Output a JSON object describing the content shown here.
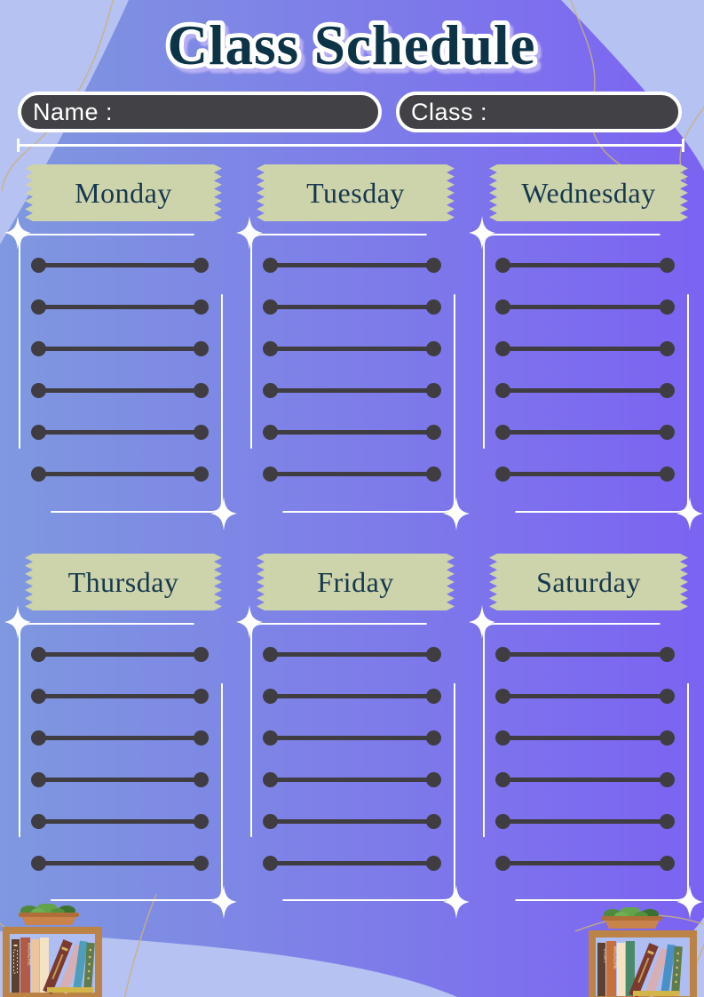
{
  "title": "Class Schedule",
  "fields": {
    "name_label": "Name :",
    "name_value": "",
    "class_label": "Class :",
    "class_value": ""
  },
  "days": [
    {
      "label": "Monday"
    },
    {
      "label": "Tuesday"
    },
    {
      "label": "Wednesday"
    },
    {
      "label": "Thursday"
    },
    {
      "label": "Friday"
    },
    {
      "label": "Saturday"
    }
  ],
  "lines_per_day": 6,
  "decor": {
    "sparkle_icon": "four-point-star",
    "banner_style": "zigzag-tape-ribbon",
    "bookshelf": {
      "magazine_label": "MAGAZINE",
      "story_label": "STORY"
    }
  },
  "colors": {
    "bg_light": "#b6c2f1",
    "purple_start": "#7f98df",
    "purple_end": "#7c63f2",
    "banner_bg": "#cdd3ab",
    "banner_text": "#16384e",
    "title_color": "#0d3347",
    "field_bg": "#424146",
    "line_color": "#3f3d41",
    "wood": "#bc8347",
    "tan_line": "#c8b083"
  }
}
